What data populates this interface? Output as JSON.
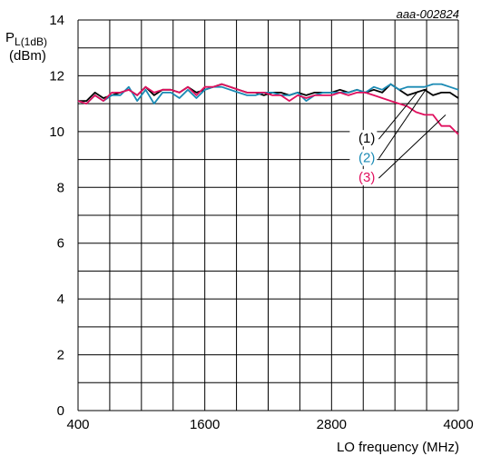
{
  "chart_data": {
    "type": "line",
    "reference": "aaa-002824",
    "ylabel": {
      "main": "P",
      "sub": "L(1dB)",
      "unit": "(dBm)"
    },
    "xlabel": "LO frequency (MHz)",
    "xlim": [
      400,
      4000
    ],
    "ylim": [
      0,
      14
    ],
    "xticks": [
      400,
      1600,
      2800,
      4000
    ],
    "yticks": [
      0,
      2,
      4,
      6,
      8,
      10,
      12,
      14
    ],
    "grid": true,
    "x": [
      400,
      480,
      560,
      640,
      720,
      800,
      880,
      960,
      1040,
      1120,
      1200,
      1280,
      1360,
      1440,
      1520,
      1600,
      1680,
      1760,
      1840,
      1920,
      2000,
      2080,
      2160,
      2240,
      2320,
      2400,
      2480,
      2560,
      2640,
      2720,
      2800,
      2880,
      2960,
      3040,
      3120,
      3200,
      3280,
      3360,
      3440,
      3520,
      3600,
      3680,
      3760,
      3840,
      3920,
      4000
    ],
    "series": [
      {
        "name": "(1)",
        "color": "#000000",
        "values": [
          11.1,
          11.1,
          11.4,
          11.2,
          11.3,
          11.4,
          11.5,
          11.3,
          11.6,
          11.3,
          11.5,
          11.5,
          11.4,
          11.6,
          11.4,
          11.5,
          11.6,
          11.7,
          11.6,
          11.5,
          11.4,
          11.4,
          11.3,
          11.4,
          11.4,
          11.3,
          11.4,
          11.3,
          11.4,
          11.4,
          11.4,
          11.5,
          11.4,
          11.5,
          11.4,
          11.5,
          11.4,
          11.7,
          11.5,
          11.3,
          11.4,
          11.5,
          11.3,
          11.4,
          11.4,
          11.2
        ]
      },
      {
        "name": "(2)",
        "color": "#1a8ab4",
        "values": [
          11.1,
          11.0,
          11.3,
          11.1,
          11.3,
          11.3,
          11.6,
          11.1,
          11.5,
          11.0,
          11.4,
          11.4,
          11.2,
          11.5,
          11.2,
          11.5,
          11.6,
          11.6,
          11.5,
          11.4,
          11.3,
          11.3,
          11.4,
          11.4,
          11.3,
          11.3,
          11.4,
          11.1,
          11.3,
          11.4,
          11.4,
          11.4,
          11.4,
          11.5,
          11.4,
          11.6,
          11.5,
          11.7,
          11.5,
          11.6,
          11.6,
          11.6,
          11.7,
          11.7,
          11.6,
          11.5
        ]
      },
      {
        "name": "(3)",
        "color": "#e0105e",
        "values": [
          11.1,
          11.0,
          11.3,
          11.1,
          11.4,
          11.4,
          11.5,
          11.3,
          11.6,
          11.4,
          11.5,
          11.5,
          11.4,
          11.6,
          11.3,
          11.6,
          11.6,
          11.7,
          11.6,
          11.5,
          11.4,
          11.4,
          11.4,
          11.3,
          11.3,
          11.1,
          11.3,
          11.2,
          11.3,
          11.3,
          11.3,
          11.4,
          11.3,
          11.4,
          11.4,
          11.3,
          11.2,
          11.1,
          11.0,
          10.9,
          10.7,
          10.6,
          10.6,
          10.2,
          10.2,
          9.9
        ]
      }
    ],
    "legend_placement": "inside, right of center, with leader lines"
  }
}
